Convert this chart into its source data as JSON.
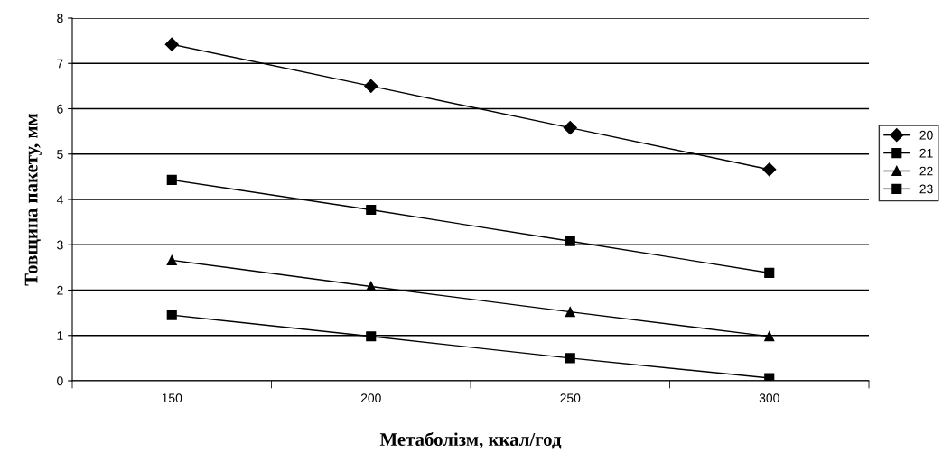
{
  "chart_data": {
    "type": "line",
    "xlabel": "Метаболізм, ккал/год",
    "ylabel": "Товщина пакету, мм",
    "categories": [
      "150",
      "200",
      "250",
      "300"
    ],
    "series": [
      {
        "name": "20",
        "color": "#000000",
        "marker": "diamond",
        "values": [
          7.42,
          6.5,
          5.58,
          4.66
        ]
      },
      {
        "name": "21",
        "color": "#000000",
        "marker": "square",
        "values": [
          4.43,
          3.77,
          3.08,
          2.38
        ]
      },
      {
        "name": "22",
        "color": "#000000",
        "marker": "triangle",
        "values": [
          2.66,
          2.08,
          1.52,
          0.98
        ]
      },
      {
        "name": "23",
        "color": "#000000",
        "marker": "square",
        "values": [
          1.45,
          0.98,
          0.5,
          0.06
        ]
      }
    ],
    "ylim": [
      0,
      8
    ],
    "yticks": [
      0,
      1,
      2,
      3,
      4,
      5,
      6,
      7,
      8
    ],
    "grid": "y",
    "legend": "right",
    "line_style": "solid"
  }
}
